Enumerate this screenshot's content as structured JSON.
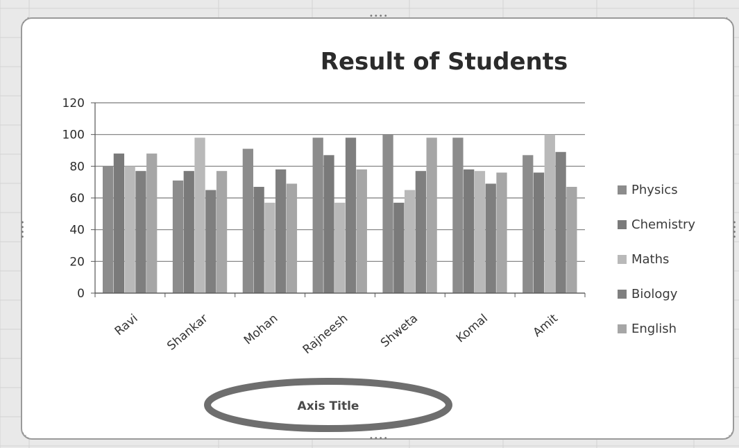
{
  "chart_data": {
    "type": "bar",
    "title": "Result of Students",
    "xlabel": "Axis Title",
    "ylabel": "",
    "ylim": [
      0,
      120
    ],
    "yticks": [
      0,
      20,
      40,
      60,
      80,
      100,
      120
    ],
    "grid": true,
    "legend_position": "right",
    "categories": [
      "Ravi",
      "Shankar",
      "Mohan",
      "Rajneesh",
      "Shweta",
      "Komal",
      "Amit"
    ],
    "series": [
      {
        "name": "Physics",
        "color": "#8c8c8c",
        "values": [
          80,
          71,
          91,
          98,
          100,
          98,
          87
        ]
      },
      {
        "name": "Chemistry",
        "color": "#7a7a7a",
        "values": [
          88,
          77,
          67,
          87,
          57,
          78,
          76
        ]
      },
      {
        "name": "Maths",
        "color": "#b9b9b9",
        "values": [
          80,
          98,
          57,
          57,
          65,
          77,
          100
        ]
      },
      {
        "name": "Biology",
        "color": "#7f7f7f",
        "values": [
          77,
          65,
          78,
          98,
          77,
          69,
          89
        ]
      },
      {
        "name": "English",
        "color": "#a6a6a6",
        "values": [
          88,
          77,
          69,
          78,
          98,
          76,
          67
        ]
      }
    ]
  }
}
